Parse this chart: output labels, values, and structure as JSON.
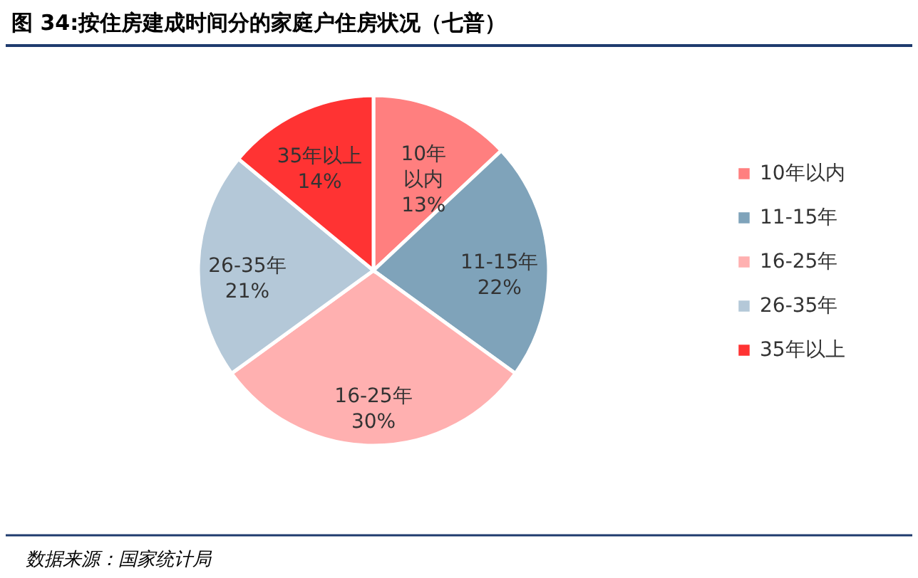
{
  "chart_data": {
    "type": "pie",
    "title": "图 34:按住房建成时间分的家庭户住房状况（七普）",
    "categories": [
      "10年以内",
      "11-15年",
      "16-25年",
      "26-35年",
      "35年以上"
    ],
    "values": [
      13,
      22,
      30,
      21,
      14
    ],
    "value_labels": [
      "13%",
      "22%",
      "30%",
      "21%",
      "14%"
    ],
    "colors": [
      "#ff7f7f",
      "#7fa3ba",
      "#ffb0b0",
      "#b4c8d8",
      "#ff3333"
    ],
    "legend": "right",
    "annotations": [
      "数据来源：国家统计局"
    ]
  }
}
